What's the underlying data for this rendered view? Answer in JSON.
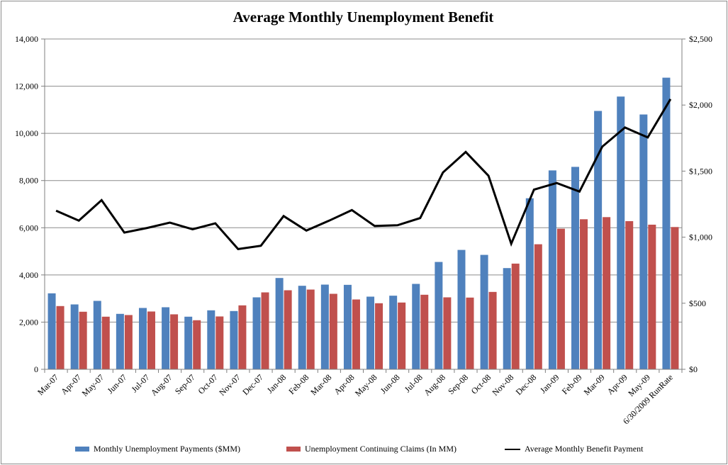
{
  "chart_data": {
    "type": "bar+line",
    "title": "Average Monthly Unemployment Benefit",
    "categories": [
      "Mar-07",
      "Apr-07",
      "May-07",
      "Jun-07",
      "Jul-07",
      "Aug-07",
      "Sep-07",
      "Oct-07",
      "Nov-07",
      "Dec-07",
      "Jan-08",
      "Feb-08",
      "Mar-08",
      "Apr-08",
      "May-08",
      "Jun-08",
      "Jul-08",
      "Aug-08",
      "Sep-08",
      "Oct-08",
      "Nov-08",
      "Dec-08",
      "Jan-09",
      "Feb-09",
      "Mar-09",
      "Apr-09",
      "May-09",
      "6/30/2009 RunRate"
    ],
    "series": [
      {
        "name": "Monthly Unemployment Payments ($MM)",
        "type": "bar",
        "axis": "left",
        "color": "#4F81BD",
        "values": [
          3220,
          2750,
          2900,
          2350,
          2600,
          2630,
          2230,
          2500,
          2470,
          3050,
          3870,
          3540,
          3590,
          3580,
          3080,
          3120,
          3620,
          4550,
          5060,
          4850,
          4290,
          7250,
          8430,
          8580,
          10950,
          11560,
          10800,
          12360
        ]
      },
      {
        "name": "Unemployment Continuing Claims (In MM)",
        "type": "bar",
        "axis": "left",
        "color": "#C0504D",
        "values": [
          2680,
          2440,
          2230,
          2300,
          2450,
          2330,
          2080,
          2240,
          2710,
          3260,
          3350,
          3380,
          3200,
          2960,
          2800,
          2830,
          3160,
          3050,
          3040,
          3280,
          4480,
          5300,
          5960,
          6360,
          6450,
          6280,
          6130,
          6030
        ]
      },
      {
        "name": "Average Monthly Benefit Payment",
        "type": "line",
        "axis": "right",
        "color": "#000000",
        "values": [
          1200,
          1125,
          1280,
          1035,
          1070,
          1110,
          1060,
          1105,
          910,
          935,
          1160,
          1050,
          1125,
          1205,
          1085,
          1090,
          1145,
          1490,
          1645,
          1465,
          950,
          1360,
          1410,
          1345,
          1685,
          1830,
          1755,
          2045
        ]
      }
    ],
    "y_left": {
      "min": 0,
      "max": 14000,
      "ticks": [
        0,
        2000,
        4000,
        6000,
        8000,
        10000,
        12000,
        14000
      ],
      "tick_labels": [
        "0",
        "2,000",
        "4,000",
        "6,000",
        "8,000",
        "10,000",
        "12,000",
        "14,000"
      ]
    },
    "y_right": {
      "min": 0,
      "max": 2500,
      "ticks": [
        0,
        500,
        1000,
        1500,
        2000,
        2500
      ],
      "tick_labels": [
        "$0",
        "$500",
        "$1,000",
        "$1,500",
        "$2,000",
        "$2,500"
      ]
    },
    "grid": true,
    "legend_position": "bottom"
  },
  "legend": {
    "payments": "Monthly Unemployment Payments ($MM)",
    "claims": "Unemployment Continuing Claims (In MM)",
    "benefit": "Average Monthly Benefit Payment"
  }
}
